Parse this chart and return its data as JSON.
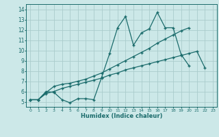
{
  "xlabel": "Humidex (Indice chaleur)",
  "bg_color": "#cce8e8",
  "grid_color": "#aacccc",
  "line_color": "#1a6b6b",
  "xlim": [
    -0.5,
    23.5
  ],
  "ylim": [
    4.5,
    14.5
  ],
  "xticks": [
    0,
    1,
    2,
    3,
    4,
    5,
    6,
    7,
    8,
    9,
    10,
    11,
    12,
    13,
    14,
    15,
    16,
    17,
    18,
    19,
    20,
    21,
    22,
    23
  ],
  "yticks": [
    5,
    6,
    7,
    8,
    9,
    10,
    11,
    12,
    13,
    14
  ],
  "series1": [
    5.2,
    5.2,
    6.0,
    5.9,
    5.2,
    4.9,
    5.3,
    5.3,
    5.2,
    7.4,
    9.7,
    12.2,
    13.3,
    10.5,
    11.7,
    12.1,
    13.7,
    12.2,
    12.2,
    9.6,
    8.5,
    null,
    null,
    null
  ],
  "series2": [
    5.2,
    5.2,
    5.9,
    6.5,
    6.7,
    6.8,
    7.0,
    7.2,
    7.5,
    7.8,
    8.2,
    8.6,
    9.0,
    9.4,
    9.8,
    10.2,
    10.7,
    11.1,
    11.5,
    11.9,
    12.2,
    null,
    null,
    null
  ],
  "series3": [
    5.2,
    5.2,
    5.8,
    6.0,
    6.3,
    6.5,
    6.7,
    6.9,
    7.1,
    7.3,
    7.6,
    7.8,
    8.1,
    8.3,
    8.5,
    8.7,
    8.9,
    9.1,
    9.3,
    9.5,
    9.7,
    9.9,
    8.3,
    null
  ]
}
